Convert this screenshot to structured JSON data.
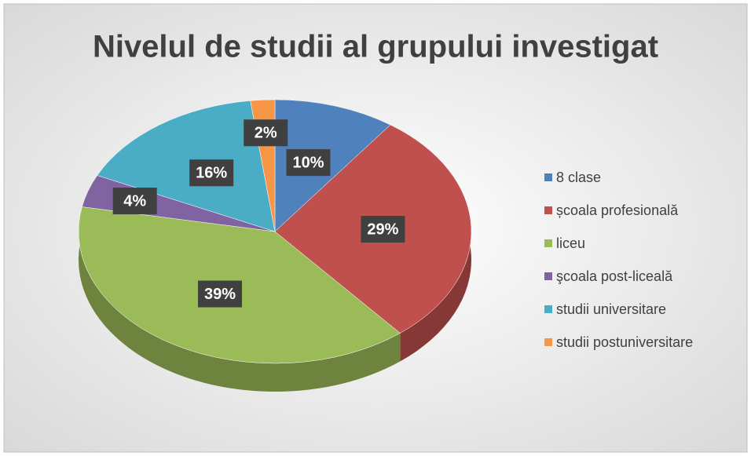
{
  "chart_data": {
    "type": "pie",
    "title": "Nivelul de studii al grupului investigat",
    "categories": [
      "8 clase",
      "școala profesională",
      "liceu",
      "şcoala post-liceală",
      "studii universitare",
      "studii postuniversitare"
    ],
    "values": [
      10,
      29,
      39,
      4,
      16,
      2
    ],
    "value_labels": [
      "10%",
      "29%",
      "39%",
      "4%",
      "16%",
      "2%"
    ],
    "colors": [
      "#4f81bd",
      "#c0504d",
      "#9bbb59",
      "#8064a2",
      "#4bacc6",
      "#f79646"
    ],
    "legend": "right"
  }
}
